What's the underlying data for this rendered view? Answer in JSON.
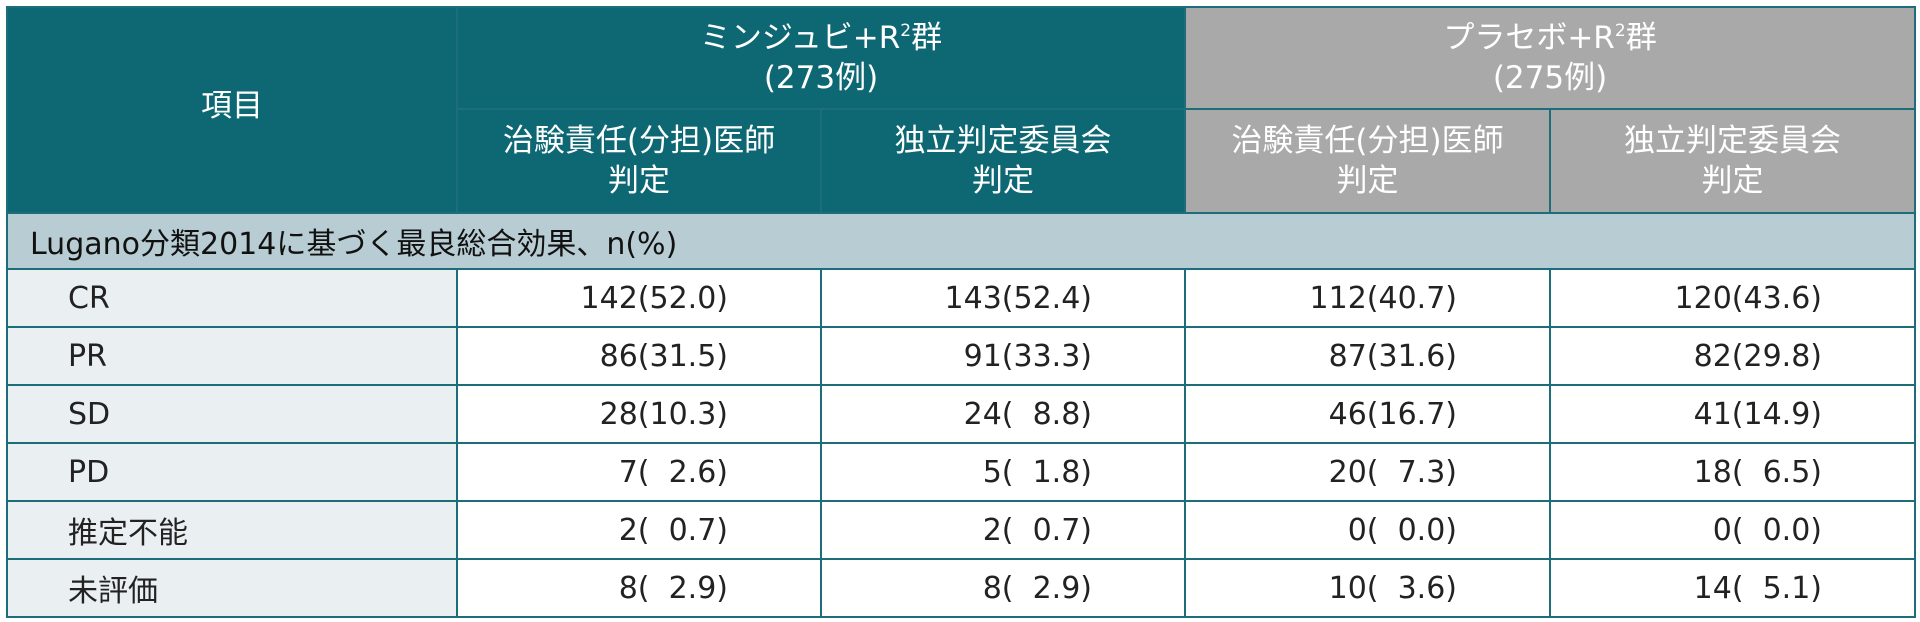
{
  "header": {
    "item_label": "項目",
    "groups": [
      {
        "name_prefix": "ミンジュビ+R",
        "sup": "2",
        "name_suffix": "群",
        "n": "(273例)",
        "color": "#0d6874"
      },
      {
        "name_prefix": "プラセボ+R",
        "sup": "2",
        "name_suffix": "群",
        "n": "(275例)",
        "color": "#a9a9a9"
      }
    ],
    "sub_headers": [
      {
        "line1": "治験責任(分担)医師",
        "line2": "判定"
      },
      {
        "line1": "独立判定委員会",
        "line2": "判定"
      },
      {
        "line1": "治験責任(分担)医師",
        "line2": "判定"
      },
      {
        "line1": "独立判定委員会",
        "line2": "判定"
      }
    ]
  },
  "section_title": "Lugano分類2014に基づく最良総合効果、n(%)",
  "rows": [
    {
      "label": "CR",
      "values": [
        "142(52.0)",
        "143(52.4)",
        "112(40.7)",
        "120(43.6)"
      ]
    },
    {
      "label": "PR",
      "values": [
        "86(31.5)",
        "91(33.3)",
        "87(31.6)",
        "82(29.8)"
      ]
    },
    {
      "label": "SD",
      "values": [
        "28(10.3)",
        "24(  8.8)",
        "46(16.7)",
        "41(14.9)"
      ]
    },
    {
      "label": "PD",
      "values": [
        "7(  2.6)",
        "5(  1.8)",
        "20(  7.3)",
        "18(  6.5)"
      ]
    },
    {
      "label": "推定不能",
      "values": [
        "2(  0.7)",
        "2(  0.7)",
        "0(  0.0)",
        "0(  0.0)"
      ]
    },
    {
      "label": "未評価",
      "values": [
        "8(  2.9)",
        "8(  2.9)",
        "10(  3.6)",
        "14(  5.1)"
      ]
    }
  ]
}
